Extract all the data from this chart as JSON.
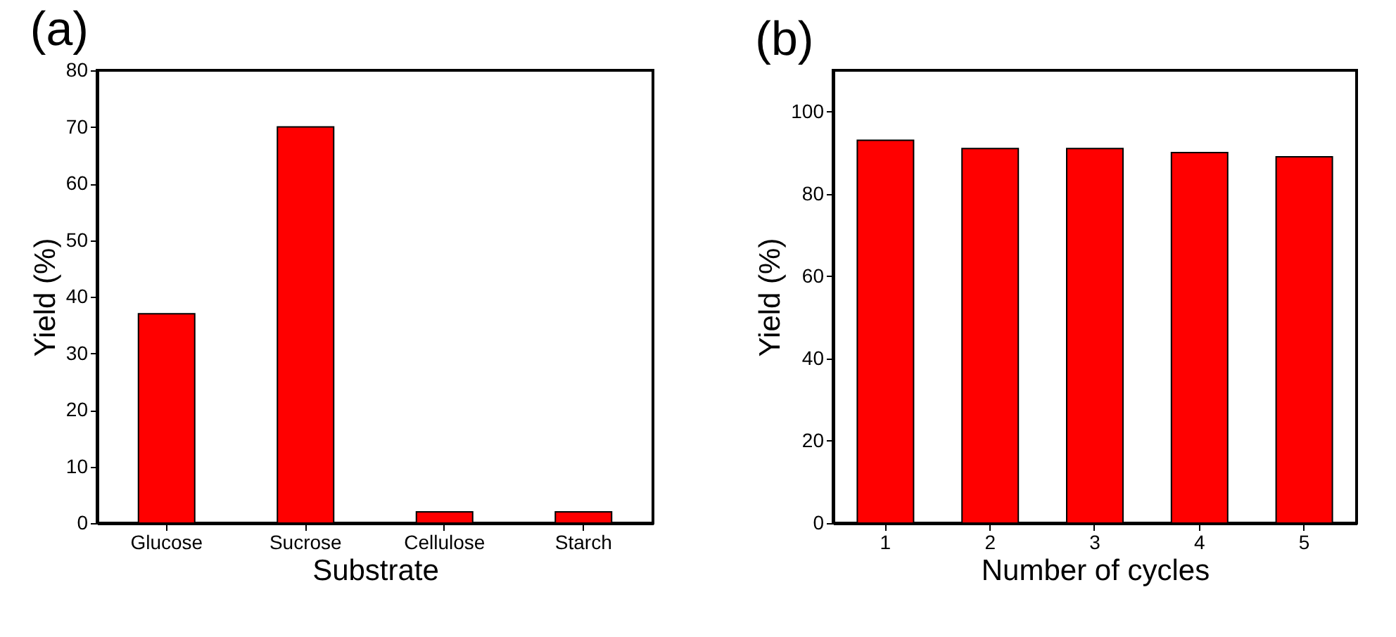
{
  "chart_data": [
    {
      "type": "bar",
      "title": "(a)",
      "xlabel": "Substrate",
      "ylabel": "Yield (%)",
      "categories": [
        "Glucose",
        "Sucrose",
        "Cellulose",
        "Starch"
      ],
      "series": [
        {
          "color": "#ff0000",
          "values": [
            37,
            70,
            2,
            2
          ]
        }
      ],
      "ylim": [
        0,
        80
      ],
      "yticks": [
        0,
        10,
        20,
        30,
        40,
        50,
        60,
        70,
        80
      ],
      "grid": false,
      "legend": false
    },
    {
      "type": "bar",
      "title": "(b)",
      "xlabel": "Number of cycles",
      "ylabel": "Yield (%)",
      "categories": [
        "1",
        "2",
        "3",
        "4",
        "5"
      ],
      "series": [
        {
          "color": "#ff0000",
          "values": [
            93,
            91,
            91,
            90,
            89
          ]
        }
      ],
      "ylim": [
        0,
        110
      ],
      "yticks": [
        0,
        20,
        40,
        60,
        80,
        100
      ],
      "grid": false,
      "legend": false
    }
  ]
}
